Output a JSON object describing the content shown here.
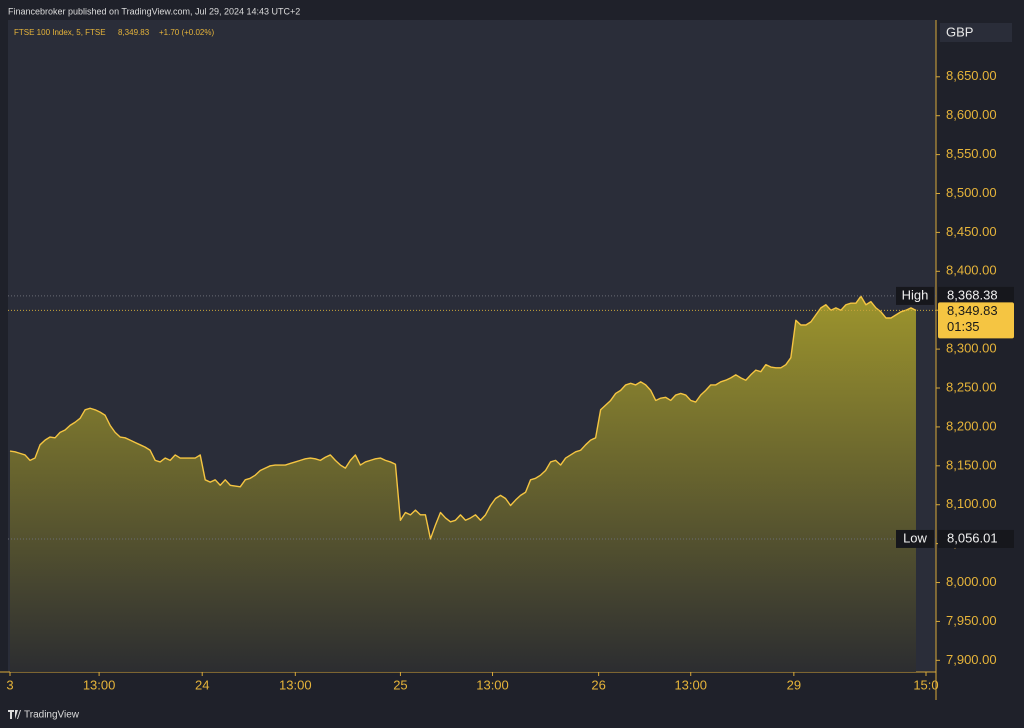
{
  "header": "Financebroker published on TradingView.com, Jul 29, 2024 14:43 UTC+2",
  "footer": "TradingView",
  "chart_data": {
    "type": "area",
    "title": "FTSE 100 Index, 5, FTSE",
    "price_label": "8,349.83",
    "change_label": "+1.70 (+0.02%)",
    "currency": "GBP",
    "x": [
      0,
      1,
      2,
      3,
      4,
      5,
      6,
      7,
      8,
      9,
      10,
      11,
      12,
      13,
      14,
      15,
      16,
      17,
      18,
      19,
      20,
      21,
      22,
      23,
      24,
      25,
      26,
      27,
      28,
      29,
      30,
      31,
      32,
      33,
      34,
      35,
      36,
      37,
      38,
      39,
      40,
      41,
      42,
      43,
      44,
      45,
      46,
      47,
      48,
      49,
      50,
      51,
      52,
      53,
      54,
      55,
      56,
      57,
      58,
      59,
      60,
      61,
      62,
      63,
      64,
      65,
      66,
      67,
      68,
      69,
      70,
      71,
      72,
      73,
      74,
      75,
      76,
      77,
      78,
      79,
      80,
      81,
      82,
      83,
      84,
      85,
      86,
      87,
      88,
      89,
      90,
      91,
      92,
      93,
      94,
      95,
      96,
      97,
      98,
      99,
      100,
      101,
      102,
      103,
      104,
      105,
      106,
      107,
      108,
      109,
      110,
      111,
      112,
      113,
      114,
      115,
      116,
      117,
      118,
      119,
      120,
      121,
      122,
      123,
      124,
      125,
      126,
      127,
      128,
      129,
      130,
      131,
      132,
      133,
      134,
      135,
      136,
      137,
      138,
      139,
      140,
      141,
      142,
      143,
      144,
      145,
      146,
      147,
      148,
      149,
      150,
      151,
      152,
      153,
      154,
      155,
      156,
      157,
      158,
      159,
      160,
      161,
      162,
      163,
      164,
      165,
      166,
      167,
      168,
      169,
      170,
      171,
      172,
      173,
      174,
      175,
      176,
      177,
      178,
      179,
      180,
      181
    ],
    "series": [
      {
        "name": "FTSE 100 Index",
        "color": "#f5c542",
        "values": [
          8169,
          8168,
          8166,
          8164,
          8157,
          8160,
          8177,
          8183,
          8187,
          8186,
          8193,
          8196,
          8202,
          8206,
          8211,
          8222,
          8224,
          8222,
          8219,
          8215,
          8202,
          8193,
          8187,
          8186,
          8183,
          8180,
          8177,
          8174,
          8170,
          8157,
          8155,
          8160,
          8157,
          8164,
          8160,
          8160,
          8160,
          8160,
          8164,
          8132,
          8129,
          8132,
          8125,
          8132,
          8125,
          8124,
          8123,
          8132,
          8134,
          8138,
          8144,
          8147,
          8150,
          8151,
          8151,
          8151,
          8153,
          8155,
          8157,
          8159,
          8160,
          8159,
          8157,
          8161,
          8164,
          8157,
          8151,
          8147,
          8157,
          8164,
          8151,
          8155,
          8157,
          8159,
          8160,
          8157,
          8155,
          8152,
          8080,
          8090,
          8087,
          8093,
          8087,
          8087,
          8056,
          8074,
          8090,
          8083,
          8078,
          8080,
          8087,
          8080,
          8083,
          8087,
          8080,
          8087,
          8099,
          8108,
          8112,
          8108,
          8099,
          8106,
          8112,
          8116,
          8132,
          8134,
          8138,
          8144,
          8155,
          8157,
          8151,
          8160,
          8164,
          8168,
          8170,
          8177,
          8183,
          8186,
          8222,
          8228,
          8234,
          8243,
          8247,
          8254,
          8256,
          8254,
          8258,
          8254,
          8247,
          8234,
          8237,
          8238,
          8234,
          8241,
          8243,
          8241,
          8234,
          8232,
          8241,
          8247,
          8254,
          8254,
          8258,
          8260,
          8263,
          8267,
          8263,
          8260,
          8267,
          8273,
          8271,
          8280,
          8277,
          8276,
          8276,
          8280,
          8289,
          8337,
          8331,
          8331,
          8335,
          8344,
          8353,
          8357,
          8350,
          8353,
          8350,
          8357,
          8359,
          8359,
          8368,
          8357,
          8361,
          8353,
          8348,
          8340,
          8340,
          8344,
          8348,
          8350,
          8353,
          8349.83
        ]
      }
    ],
    "xlim": [
      -0.4,
      185
    ],
    "xticks": [
      {
        "value": 0,
        "label": "3"
      },
      {
        "value": 17.8,
        "label": "13:00"
      },
      {
        "value": 38.4,
        "label": "24"
      },
      {
        "value": 57,
        "label": "13:00"
      },
      {
        "value": 78,
        "label": "25"
      },
      {
        "value": 96.4,
        "label": "13:00"
      },
      {
        "value": 117.6,
        "label": "26"
      },
      {
        "value": 136,
        "label": "13:00"
      },
      {
        "value": 156.6,
        "label": "29"
      },
      {
        "value": 183,
        "label": "15:0"
      }
    ],
    "ylim": [
      7885,
      8723
    ],
    "yticks": [
      {
        "value": 7900,
        "label": "7,900.00"
      },
      {
        "value": 7950,
        "label": "7,950.00"
      },
      {
        "value": 8000,
        "label": "8,000.00"
      },
      {
        "value": 8050,
        "label": "8,050.00"
      },
      {
        "value": 8100,
        "label": "8,100.00"
      },
      {
        "value": 8150,
        "label": "8,150.00"
      },
      {
        "value": 8200,
        "label": "8,200.00"
      },
      {
        "value": 8250,
        "label": "8,250.00"
      },
      {
        "value": 8300,
        "label": "8,300.00"
      },
      {
        "value": 8350,
        "label": "8,350.00"
      },
      {
        "value": 8400,
        "label": "8,400.00"
      },
      {
        "value": 8450,
        "label": "8,450.00"
      },
      {
        "value": 8500,
        "label": "8,500.00"
      },
      {
        "value": 8550,
        "label": "8,550.00"
      },
      {
        "value": 8600,
        "label": "8,600.00"
      },
      {
        "value": 8650,
        "label": "8,650.00"
      }
    ],
    "high": {
      "name": "High",
      "value": 8368.38,
      "label": "8,368.38"
    },
    "low": {
      "name": "Low",
      "value": 8056.01,
      "label": "8,056.01"
    },
    "last": {
      "value": 8349.83,
      "label": "8,349.83",
      "countdown": "01:35"
    }
  }
}
